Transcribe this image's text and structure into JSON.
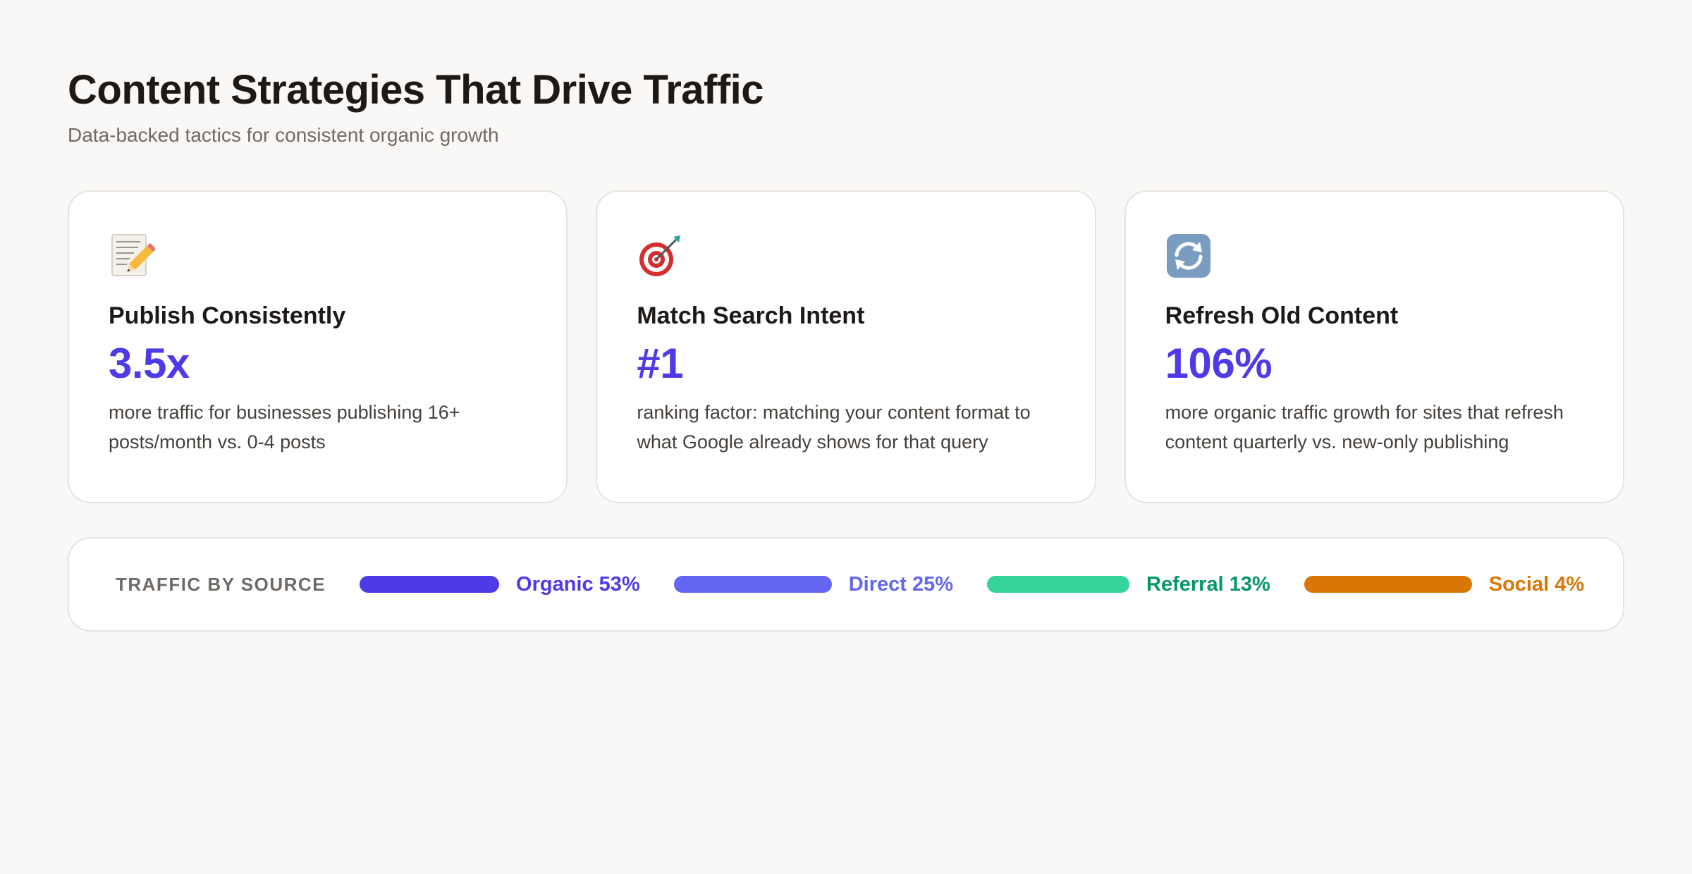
{
  "header": {
    "title": "Content Strategies That Drive Traffic",
    "subtitle": "Data-backed tactics for consistent organic growth"
  },
  "cards": [
    {
      "icon": "notepad-pencil-icon",
      "title": "Publish Consistently",
      "stat": "3.5x",
      "description": "more traffic for businesses publishing 16+ posts/month vs. 0-4 posts"
    },
    {
      "icon": "target-icon",
      "title": "Match Search Intent",
      "stat": "#1",
      "description": "ranking factor: matching your content format to what Google already shows for that query"
    },
    {
      "icon": "refresh-icon",
      "title": "Refresh Old Content",
      "stat": "106%",
      "description": "more organic traffic growth for sites that refresh content quarterly vs. new-only publishing"
    }
  ],
  "traffic": {
    "label": "TRAFFIC BY SOURCE",
    "sources": [
      {
        "label": "Organic 53%",
        "percent": 53,
        "color": "#4f3ae8",
        "text_color": "#4f3ae8"
      },
      {
        "label": "Direct 25%",
        "percent": 25,
        "color": "#6366f1",
        "text_color": "#6366f1"
      },
      {
        "label": "Referral 13%",
        "percent": 13,
        "color": "#34d399",
        "text_color": "#059669"
      },
      {
        "label": "Social 4%",
        "percent": 4,
        "color": "#d97706",
        "text_color": "#d97706"
      }
    ]
  },
  "colors": {
    "accent": "#4f3ae8",
    "background": "#f9f8f6",
    "card_border": "#e7e4df"
  }
}
